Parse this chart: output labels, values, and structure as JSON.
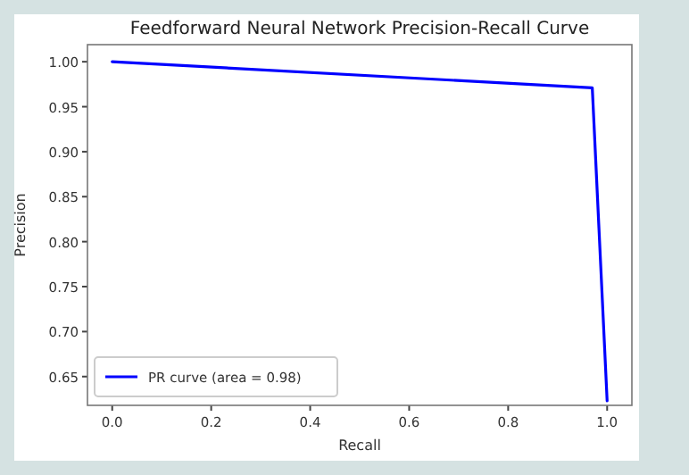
{
  "chart_data": {
    "type": "line",
    "title": "Feedforward Neural Network Precision-Recall Curve",
    "xlabel": "Recall",
    "ylabel": "Precision",
    "x": [
      0,
      0.97,
      1.0
    ],
    "series": [
      {
        "name": "PR curve (area = 0.98)",
        "color": "#0000ff",
        "values": [
          1.0,
          0.971,
          0.623
        ]
      }
    ],
    "xlim": [
      -0.05,
      1.05
    ],
    "xticks": [
      {
        "value": 0,
        "label": "0.0"
      },
      0.2,
      0.4,
      0.6,
      0.8,
      {
        "value": 1,
        "label": "1.0"
      }
    ],
    "ylim": [
      0.618,
      1.019
    ],
    "yticks": [
      {
        "value": 0.65,
        "label": "0.65"
      },
      {
        "value": 0.7,
        "label": "0.70"
      },
      {
        "value": 0.75,
        "label": "0.75"
      },
      {
        "value": 0.8,
        "label": "0.80"
      },
      {
        "value": 0.85,
        "label": "0.85"
      },
      {
        "value": 0.9,
        "label": "0.90"
      },
      {
        "value": 0.95,
        "label": "0.95"
      },
      {
        "value": 1.0,
        "label": "1.00"
      }
    ],
    "legend": "bottom left",
    "line_style": "solid"
  }
}
